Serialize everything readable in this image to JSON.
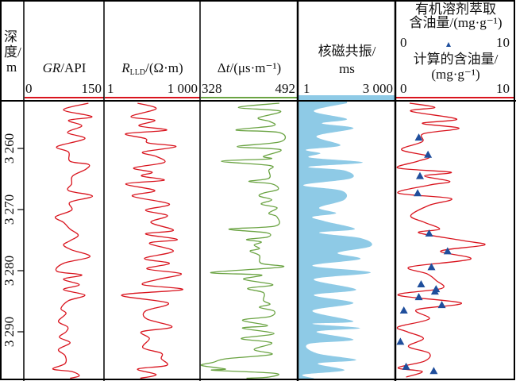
{
  "depth_label": [
    "深",
    "度/",
    "m"
  ],
  "colors": {
    "gr": "#d9141e",
    "rlld": "#d9141e",
    "dt": "#6aa342",
    "nmr": "#8ecae6",
    "oil_calc": "#d9141e",
    "oil_meas": "#1f4e9c"
  },
  "chart_data": {
    "type": "line",
    "title": "",
    "ylabel": "深度/m",
    "depth_range": [
      3252.2,
      3297.8
    ],
    "depth_ticks": [
      3260,
      3270,
      3280,
      3290
    ],
    "depth_tick_labels": [
      "3 260",
      "3 270",
      "3 280",
      "3 290"
    ],
    "tracks": [
      {
        "name": "GR",
        "label_italic": "GR",
        "label_rest": "/API",
        "scale": "linear",
        "range": [
          0,
          150
        ],
        "range_labels": [
          "0",
          "150"
        ],
        "depth": [
          3252.6,
          3253.7,
          3254.8,
          3255.4,
          3256.3,
          3257.4,
          3258.4,
          3259.7,
          3260.6,
          3262.1,
          3262.6,
          3263.4,
          3264.5,
          3265.8,
          3266.9,
          3267.8,
          3268.8,
          3270.1,
          3271.2,
          3272.1,
          3273.2,
          3274.2,
          3275.1,
          3275.8,
          3276.6,
          3277.7,
          3278.8,
          3280.1,
          3280.7,
          3281.4,
          3282.3,
          3283.1,
          3284.0,
          3284.9,
          3286.2,
          3287.0,
          3288.3,
          3289.2,
          3290.0,
          3290.9,
          3291.8,
          3292.9,
          3293.9,
          3295.2,
          3296.1,
          3296.5,
          3297.2,
          3297.6
        ],
        "values": [
          124,
          75,
          131,
          85,
          111,
          83,
          117,
          62,
          85,
          88,
          124,
          119,
          93,
          91,
          85,
          132,
          88,
          91,
          59,
          75,
          88,
          104,
          88,
          75,
          91,
          127,
          75,
          62,
          111,
          75,
          106,
          75,
          117,
          85,
          70,
          80,
          65,
          83,
          80,
          67,
          88,
          65,
          78,
          78,
          54,
          91,
          106,
          88
        ]
      },
      {
        "name": "RLLD",
        "label_italic": "R",
        "label_sub": "LLD",
        "label_rest": "/(Ω·m)",
        "scale": "log",
        "range": [
          1,
          1000
        ],
        "range_labels": [
          "1",
          "1 000"
        ],
        "depth": [
          3252.6,
          3253.5,
          3254.8,
          3255.4,
          3256.3,
          3257.0,
          3257.6,
          3258.4,
          3259.1,
          3259.7,
          3260.6,
          3261.3,
          3262.3,
          3263.2,
          3263.9,
          3264.5,
          3265.2,
          3265.8,
          3266.9,
          3267.8,
          3269.1,
          3270.1,
          3271.0,
          3272.1,
          3273.4,
          3274.0,
          3274.9,
          3275.5,
          3276.8,
          3278.0,
          3278.8,
          3279.7,
          3280.5,
          3281.4,
          3282.3,
          3283.1,
          3284.0,
          3285.3,
          3286.6,
          3287.9,
          3289.2,
          3290.0,
          3291.1,
          3292.6,
          3293.5,
          3294.4,
          3295.5,
          3296.1,
          3297.0,
          3297.6
        ],
        "values": [
          10.8,
          43,
          6.6,
          39,
          12,
          94,
          4.5,
          19.5,
          24,
          188,
          16,
          43,
          78,
          8.1,
          32,
          14.5,
          78,
          4.5,
          39,
          7.3,
          115,
          19.5,
          100,
          29,
          155,
          19.5,
          208,
          26,
          155,
          18,
          115,
          21.6,
          277,
          52,
          16,
          308,
          3.3,
          105,
          19.5,
          21.6,
          140,
          14.5,
          26,
          16,
          63,
          63,
          94,
          10.8,
          43,
          13.2
        ]
      },
      {
        "name": "DT",
        "label_symbol": "Δ",
        "label_italic": "t",
        "label_rest": "/(μs·m⁻¹)",
        "scale": "linear",
        "range": [
          328,
          492
        ],
        "range_labels": [
          "328",
          "492"
        ],
        "depth": [
          3252.6,
          3253.3,
          3253.9,
          3255.0,
          3255.6,
          3256.3,
          3257.0,
          3257.4,
          3258.9,
          3259.7,
          3260.2,
          3261.3,
          3261.7,
          3262.1,
          3262.8,
          3263.6,
          3264.9,
          3265.4,
          3265.8,
          3266.7,
          3267.3,
          3267.8,
          3268.4,
          3269.1,
          3269.7,
          3270.6,
          3271.2,
          3272.7,
          3273.2,
          3273.8,
          3274.5,
          3274.9,
          3275.3,
          3275.8,
          3276.4,
          3276.8,
          3277.5,
          3278.8,
          3279.4,
          3280.3,
          3280.7,
          3281.4,
          3282.3,
          3282.9,
          3283.6,
          3284.9,
          3285.5,
          3286.0,
          3286.6,
          3287.5,
          3288.1,
          3289.0,
          3289.4,
          3290.3,
          3291.1,
          3291.8,
          3292.9,
          3293.7,
          3294.4,
          3295.0,
          3295.5,
          3296.1,
          3296.3,
          3296.8,
          3297.4,
          3297.6
        ],
        "values": [
          462,
          392,
          464,
          426,
          446,
          451,
          388,
          462,
          464,
          390,
          464,
          435,
          446,
          363,
          446,
          444,
          444,
          410,
          449,
          460,
          435,
          428,
          449,
          431,
          458,
          444,
          458,
          455,
          376,
          440,
          442,
          406,
          431,
          419,
          428,
          412,
          428,
          431,
          467,
          345,
          431,
          401,
          451,
          408,
          435,
          435,
          446,
          428,
          453,
          446,
          399,
          442,
          399,
          453,
          397,
          449,
          419,
          449,
          372,
          349,
          329,
          370,
          349,
          455,
          444,
          406
        ]
      },
      {
        "name": "NMR",
        "label": "核磁共振/",
        "label2": "ms",
        "scale": "log",
        "range": [
          1,
          3000
        ],
        "range_labels": [
          "1",
          "3 000"
        ],
        "fill": true,
        "depth": [
          3252.6,
          3253.9,
          3255.2,
          3255.9,
          3256.7,
          3258.0,
          3259.5,
          3260.2,
          3260.8,
          3261.5,
          3262.3,
          3263.0,
          3263.6,
          3264.9,
          3266.0,
          3266.9,
          3268.4,
          3269.7,
          3270.6,
          3271.2,
          3271.9,
          3273.2,
          3273.8,
          3274.7,
          3276.0,
          3277.1,
          3278.1,
          3279.2,
          3280.3,
          3281.4,
          3283.1,
          3284.0,
          3285.3,
          3286.6,
          3288.3,
          3288.7,
          3289.4,
          3290.0,
          3291.3,
          3292.0,
          3293.5,
          3294.6,
          3295.2,
          3296.3,
          3297.0,
          3297.6
        ],
        "values": [
          57,
          3.6,
          57,
          7,
          98,
          4.5,
          33,
          1.9,
          6.2,
          2.6,
          212,
          2.3,
          46,
          79,
          1.5,
          36,
          46,
          5.6,
          23,
          3.2,
          8.7,
          110,
          5.6,
          190,
          413,
          26,
          171,
          3.2,
          413,
          3.6,
          123,
          3.6,
          98,
          3.2,
          98,
          3.2,
          171,
          4.5,
          98,
          2.3,
          4.5,
          123,
          5,
          46,
          1.5,
          3.6
        ]
      },
      {
        "name": "OIL",
        "label_meas": [
          "有机溶剂萃取",
          "含油量/(mg·g⁻¹)"
        ],
        "meas_range_labels": [
          "0",
          "10"
        ],
        "label_calc": [
          "计算的含油量/",
          "(mg·g⁻¹)"
        ],
        "scale": "linear",
        "range": [
          0,
          10
        ],
        "range_labels": [
          "0",
          "10"
        ],
        "depth": [
          3252.6,
          3253.3,
          3253.9,
          3255.2,
          3255.9,
          3256.7,
          3257.6,
          3258.9,
          3260.2,
          3261.3,
          3262.1,
          3263.2,
          3263.9,
          3264.5,
          3265.4,
          3266.0,
          3267.3,
          3268.2,
          3269.3,
          3271.0,
          3272.1,
          3273.2,
          3273.8,
          3275.1,
          3275.8,
          3276.8,
          3278.1,
          3279.4,
          3280.5,
          3281.6,
          3282.9,
          3284.0,
          3285.3,
          3286.4,
          3287.9,
          3289.2,
          3290.0,
          3291.1,
          3292.4,
          3293.5,
          3294.8,
          3295.9,
          3296.5,
          3297.4
        ],
        "values": [
          1.1,
          3.3,
          1.2,
          5.2,
          2.2,
          5.4,
          2.3,
          2.2,
          0.4,
          2.8,
          1.8,
          0.1,
          4.7,
          2.4,
          4.6,
          2.8,
          0.1,
          4.7,
          2.8,
          1.2,
          2.4,
          3.7,
          1.9,
          5.8,
          7.6,
          3.8,
          6.4,
          1.1,
          2.6,
          3.4,
          3.9,
          0.1,
          5.6,
          1.7,
          2.8,
          0.1,
          0.9,
          2.3,
          1.0,
          2.8,
          2.4,
          0.1,
          2.2,
          0.8
        ],
        "measured_depth": [
          3258.2,
          3261.0,
          3264.5,
          3267.3,
          3273.9,
          3276.8,
          3279.4,
          3282.2,
          3283.0,
          3283.4,
          3284.3,
          3285.6,
          3286.5,
          3291.6,
          3295.7,
          3296.4
        ],
        "measured_values": [
          1.9,
          2.7,
          2.0,
          1.8,
          2.8,
          4.4,
          3.0,
          2.1,
          3.4,
          3.3,
          1.9,
          3.9,
          0.6,
          0.3,
          0.8,
          3.2
        ]
      }
    ]
  }
}
